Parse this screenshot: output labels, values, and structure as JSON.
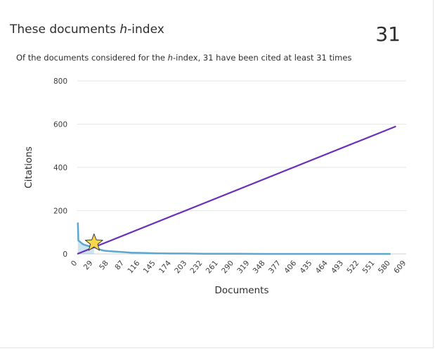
{
  "header": {
    "title_prefix": "These documents ",
    "title_italic": "h",
    "title_suffix": "-index",
    "h_index": "31",
    "subtitle_prefix": "Of the documents considered for the ",
    "subtitle_italic": "h",
    "subtitle_suffix": "-index, 31 have been cited at least 31 times"
  },
  "chart_data": {
    "type": "line",
    "xlabel": "Documents",
    "ylabel": "Citations",
    "xlim": [
      0,
      609
    ],
    "ylim": [
      0,
      800
    ],
    "x_ticks": [
      0,
      29,
      58,
      87,
      116,
      145,
      174,
      203,
      232,
      261,
      290,
      319,
      348,
      377,
      406,
      435,
      464,
      493,
      522,
      551,
      580,
      609
    ],
    "y_ticks": [
      0,
      200,
      400,
      600,
      800
    ],
    "grid": true,
    "series": [
      {
        "color": "#5aa7cf",
        "x": [
          1,
          2,
          4,
          6,
          8,
          10,
          13,
          16,
          20,
          25,
          31,
          36,
          40,
          45,
          50,
          58,
          70,
          87,
          100,
          116,
          130,
          145,
          174,
          203,
          232,
          261,
          290,
          348,
          406,
          464,
          522,
          580
        ],
        "y": [
          145,
          62,
          58,
          54,
          50,
          46,
          42,
          40,
          37,
          34,
          31,
          26,
          22,
          18,
          15,
          13,
          11,
          8,
          6,
          5,
          4,
          3,
          2,
          2,
          1,
          1,
          1,
          0,
          0,
          0,
          0,
          0
        ]
      },
      {
        "color": "#6b2fba",
        "x": [
          0,
          590
        ],
        "y": [
          0,
          590
        ]
      }
    ],
    "marker": {
      "shape": "star",
      "x": 31,
      "y": 31,
      "color": "#f5d94a"
    }
  }
}
